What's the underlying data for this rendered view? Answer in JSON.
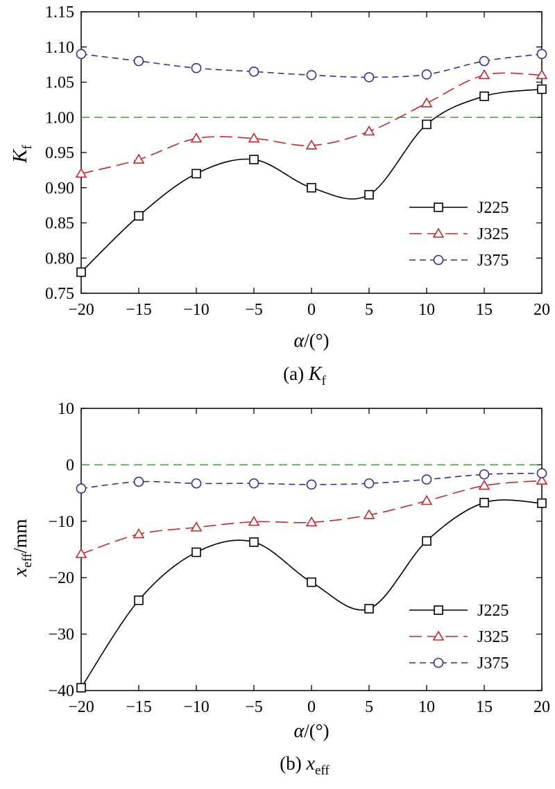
{
  "chart_data": [
    {
      "type": "line",
      "panel": "a",
      "caption": {
        "prefix": "(a) ",
        "symbol": "K",
        "subscript": "f"
      },
      "ylabel": {
        "symbol": "K",
        "subscript": "f"
      },
      "xlabel": {
        "symbol": "α",
        "unit": "/(°)"
      },
      "xlim": [
        -20,
        20
      ],
      "ylim": [
        0.75,
        1.15
      ],
      "x_ticks": [
        -20,
        -15,
        -10,
        -5,
        0,
        5,
        10,
        15,
        20
      ],
      "x_tick_labels": [
        "−20",
        "−15",
        "−10",
        "−5",
        "0",
        "5",
        "10",
        "15",
        "20"
      ],
      "y_ticks": [
        0.75,
        0.8,
        0.85,
        0.9,
        0.95,
        1.0,
        1.05,
        1.1,
        1.15
      ],
      "y_tick_labels": [
        "0.75",
        "0.80",
        "0.85",
        "0.90",
        "0.95",
        "1.00",
        "1.05",
        "1.10",
        "1.15"
      ],
      "reference_line": {
        "y": 1.0,
        "color": "#3aa63a",
        "style": "dashed"
      },
      "legend_position": "lower-right",
      "x": [
        -20,
        -15,
        -10,
        -5,
        0,
        5,
        10,
        15,
        20
      ],
      "series": [
        {
          "name": "J225",
          "color": "#000000",
          "marker": "square",
          "dash": "solid",
          "values": [
            0.78,
            0.86,
            0.92,
            0.94,
            0.9,
            0.89,
            0.99,
            1.03,
            1.04
          ]
        },
        {
          "name": "J325",
          "color": "#c0282d",
          "marker": "triangle",
          "dash": "long",
          "values": [
            0.92,
            0.94,
            0.97,
            0.97,
            0.96,
            0.98,
            1.02,
            1.06,
            1.06
          ]
        },
        {
          "name": "J375",
          "color": "#2e3192",
          "marker": "circle",
          "dash": "short",
          "values": [
            1.09,
            1.08,
            1.07,
            1.065,
            1.06,
            1.057,
            1.061,
            1.08,
            1.09
          ]
        }
      ]
    },
    {
      "type": "line",
      "panel": "b",
      "caption": {
        "prefix": "(b) ",
        "symbol": "x",
        "subscript": "eff"
      },
      "ylabel": {
        "symbol": "x",
        "subscript": "eff",
        "unit": "/mm"
      },
      "xlabel": {
        "symbol": "α",
        "unit": "/(°)"
      },
      "xlim": [
        -20,
        20
      ],
      "ylim": [
        -40,
        10
      ],
      "x_ticks": [
        -20,
        -15,
        -10,
        -5,
        0,
        5,
        10,
        15,
        20
      ],
      "x_tick_labels": [
        "−20",
        "−15",
        "−10",
        "−5",
        "0",
        "5",
        "10",
        "15",
        "20"
      ],
      "y_ticks": [
        -40,
        -30,
        -20,
        -10,
        0,
        10
      ],
      "y_tick_labels": [
        "−40",
        "−30",
        "−20",
        "−10",
        "0",
        "10"
      ],
      "reference_line": {
        "y": 0,
        "color": "#3aa63a",
        "style": "dashed"
      },
      "legend_position": "lower-right",
      "x": [
        -20,
        -15,
        -10,
        -5,
        0,
        5,
        10,
        15,
        20
      ],
      "series": [
        {
          "name": "J225",
          "color": "#000000",
          "marker": "square",
          "dash": "solid",
          "values": [
            -39.5,
            -24.0,
            -15.5,
            -13.7,
            -20.8,
            -25.5,
            -13.5,
            -6.7,
            -6.8
          ]
        },
        {
          "name": "J325",
          "color": "#c0282d",
          "marker": "triangle",
          "dash": "long",
          "values": [
            -15.8,
            -12.3,
            -11.1,
            -10.1,
            -10.2,
            -8.9,
            -6.4,
            -3.7,
            -2.8
          ]
        },
        {
          "name": "J375",
          "color": "#2e3192",
          "marker": "circle",
          "dash": "short",
          "values": [
            -4.2,
            -3.0,
            -3.3,
            -3.3,
            -3.5,
            -3.3,
            -2.6,
            -1.7,
            -1.5
          ]
        }
      ]
    }
  ]
}
